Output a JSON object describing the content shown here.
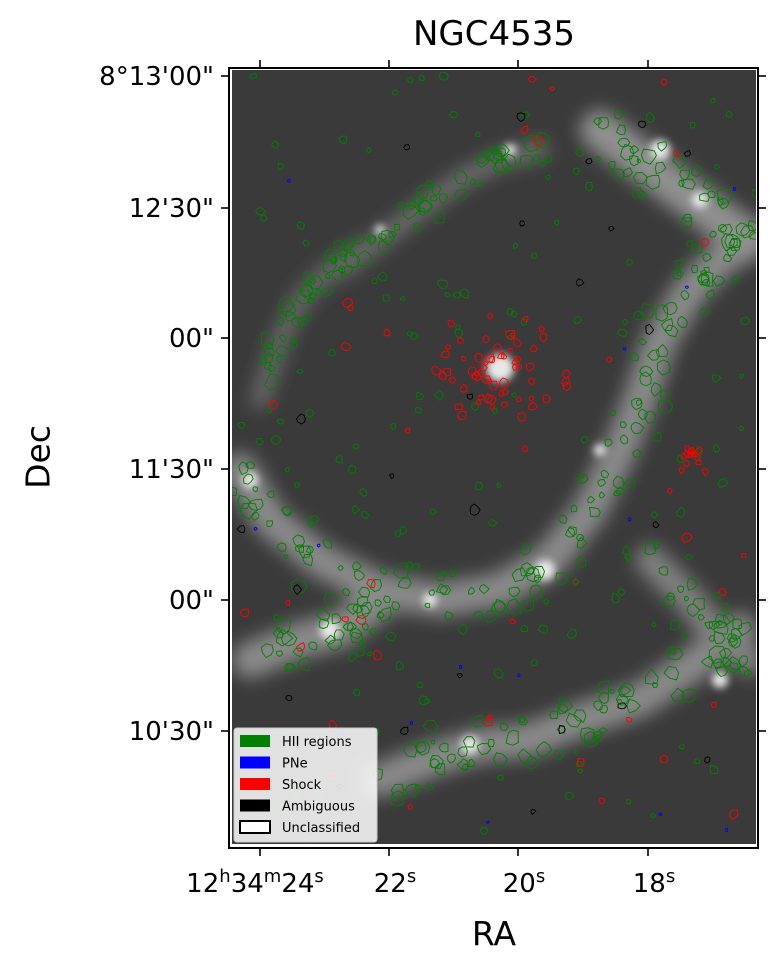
{
  "chart_data": {
    "type": "scatter",
    "title": "NGC4535",
    "xlabel": "RA",
    "ylabel": "Dec",
    "background": "grayscale narrowband image of spiral galaxy with region contour overlays",
    "x_ticks": [
      {
        "h": "12",
        "m": "34",
        "s": "24",
        "label_parts": [
          "12",
          "h",
          "34",
          "m",
          "24",
          "s"
        ]
      },
      {
        "s": "22",
        "label_parts": [
          "22",
          "s"
        ]
      },
      {
        "s": "20",
        "label_parts": [
          "20",
          "s"
        ]
      },
      {
        "s": "18",
        "label_parts": [
          "18",
          "s"
        ]
      }
    ],
    "y_ticks": [
      "8°13'00\"",
      "12'30\"",
      "00\"",
      "11'30\"",
      "00\"",
      "10'30\""
    ],
    "legend": {
      "placement": "lower-left",
      "entries": [
        {
          "label": "HII regions",
          "color": "#008000",
          "style": "filled"
        },
        {
          "label": "PNe",
          "color": "#0000ff",
          "style": "filled"
        },
        {
          "label": "Shock",
          "color": "#ff0000",
          "style": "filled"
        },
        {
          "label": "Ambiguous",
          "color": "#000000",
          "style": "filled"
        },
        {
          "label": "Unclassified",
          "color": "#000000",
          "style": "outline"
        }
      ]
    },
    "series": [
      {
        "name": "HII regions",
        "color": "#008000"
      },
      {
        "name": "PNe",
        "color": "#0000ff"
      },
      {
        "name": "Shock",
        "color": "#ff0000"
      },
      {
        "name": "Ambiguous",
        "color": "#000000"
      },
      {
        "name": "Unclassified",
        "color": "#000000"
      }
    ]
  }
}
